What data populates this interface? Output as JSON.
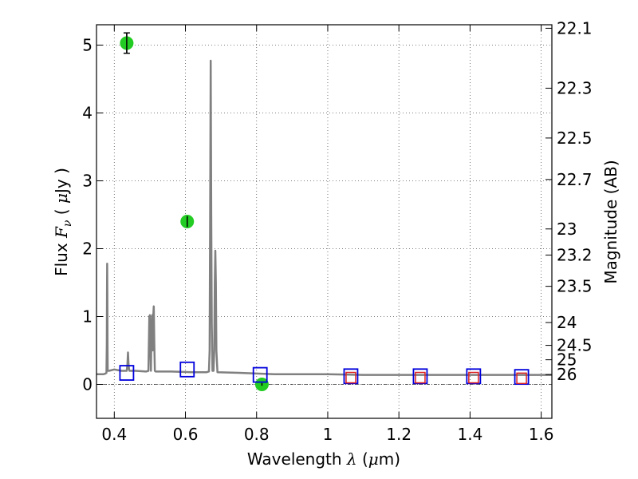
{
  "chart_data": {
    "type": "scatter",
    "title": "",
    "xlabel": {
      "prefix": "Wavelength ",
      "symbol": "λ",
      "open": " (",
      "unit_mu": "μ",
      "unit_rest": "m)"
    },
    "ylabel": {
      "prefix": "Flux ",
      "symbol": "F",
      "sub": "ν",
      "open": "  ( ",
      "unit_mu": "μ",
      "unit_rest": "Jy )"
    },
    "y2label": "Magnitude (AB)",
    "xlim": [
      0.35,
      1.63
    ],
    "ylim": [
      -0.5,
      5.3
    ],
    "grid": true,
    "x_ticks": [
      {
        "value": 0.4,
        "label": "0.4"
      },
      {
        "value": 0.6,
        "label": "0.6"
      },
      {
        "value": 0.8,
        "label": "0.8"
      },
      {
        "value": 1.0,
        "label": "1"
      },
      {
        "value": 1.2,
        "label": "1.2"
      },
      {
        "value": 1.4,
        "label": "1.4"
      },
      {
        "value": 1.6,
        "label": "1.6"
      }
    ],
    "y_ticks": [
      {
        "value": 0,
        "label": "0"
      },
      {
        "value": 1,
        "label": "1"
      },
      {
        "value": 2,
        "label": "2"
      },
      {
        "value": 3,
        "label": "3"
      },
      {
        "value": 4,
        "label": "4"
      },
      {
        "value": 5,
        "label": "5"
      }
    ],
    "y2_ticks": [
      {
        "mag": 22.1,
        "label": "22.1"
      },
      {
        "mag": 22.3,
        "label": "22.3"
      },
      {
        "mag": 22.5,
        "label": "22.5"
      },
      {
        "mag": 22.7,
        "label": "22.7"
      },
      {
        "mag": 23.0,
        "label": "23"
      },
      {
        "mag": 23.2,
        "label": "23.2"
      },
      {
        "mag": 23.5,
        "label": "23.5"
      },
      {
        "mag": 24.0,
        "label": "24"
      },
      {
        "mag": 24.5,
        "label": "24.5"
      },
      {
        "mag": 25.0,
        "label": "25"
      },
      {
        "mag": 26.0,
        "label": "26"
      }
    ],
    "colors": {
      "sed": "#808080",
      "observed": "#22cc22",
      "model_blue": "#0000dd",
      "model_red": "#dd2222",
      "grid": "#555555"
    },
    "series": [
      {
        "kind": "line",
        "x": [
          0.35,
          0.37,
          0.375,
          0.378,
          0.379,
          0.3795,
          0.38,
          0.3805,
          0.381,
          0.3815,
          0.385,
          0.4,
          0.42,
          0.435,
          0.437,
          0.4385,
          0.44,
          0.4415,
          0.443,
          0.46,
          0.49,
          0.496,
          0.4985,
          0.5,
          0.5015,
          0.503,
          0.505,
          0.5065,
          0.508,
          0.5095,
          0.511,
          0.5125,
          0.514,
          0.516,
          0.56,
          0.62,
          0.66,
          0.666,
          0.668,
          0.6695,
          0.671,
          0.6725,
          0.674,
          0.676,
          0.679,
          0.681,
          0.6825,
          0.684,
          0.6855,
          0.687,
          0.69,
          0.75,
          0.8,
          0.85,
          0.9,
          0.95,
          1.0,
          1.1,
          1.2,
          1.3,
          1.4,
          1.5,
          1.63
        ],
        "y": [
          0.15,
          0.15,
          0.16,
          0.17,
          0.6,
          1.3,
          1.78,
          1.3,
          0.6,
          0.2,
          0.2,
          0.22,
          0.2,
          0.2,
          0.3,
          0.47,
          0.3,
          0.22,
          0.2,
          0.2,
          0.19,
          0.2,
          1.0,
          1.02,
          0.6,
          0.2,
          0.9,
          1.02,
          0.5,
          1.0,
          1.15,
          0.6,
          0.2,
          0.19,
          0.19,
          0.18,
          0.18,
          0.19,
          0.5,
          2.5,
          4.77,
          2.5,
          0.9,
          0.2,
          0.2,
          0.5,
          1.5,
          1.97,
          1.5,
          0.5,
          0.18,
          0.17,
          0.16,
          0.15,
          0.15,
          0.15,
          0.15,
          0.14,
          0.14,
          0.14,
          0.14,
          0.14,
          0.14
        ]
      },
      {
        "kind": "points",
        "x": [
          0.435,
          0.605,
          0.815
        ],
        "y": [
          5.03,
          2.4,
          0.0
        ],
        "yerr": [
          0.15,
          0.08,
          0.02
        ]
      },
      {
        "kind": "open-squares-blue",
        "x": [
          0.435,
          0.605,
          0.81,
          1.065,
          1.26,
          1.41,
          1.545
        ],
        "y": [
          0.17,
          0.22,
          0.14,
          0.12,
          0.12,
          0.12,
          0.11
        ]
      },
      {
        "kind": "open-squares-red",
        "x": [
          1.065,
          1.26,
          1.41,
          1.545
        ],
        "y": [
          0.1,
          0.1,
          0.1,
          0.09
        ]
      }
    ]
  }
}
